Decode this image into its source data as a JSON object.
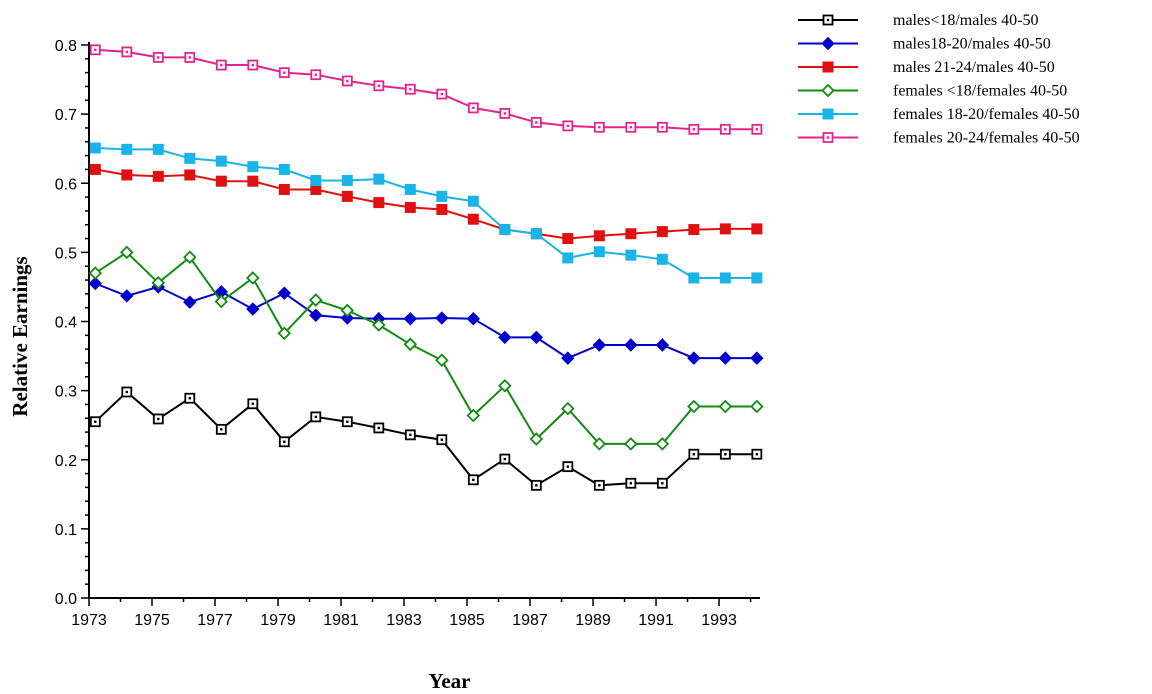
{
  "chart_data": {
    "type": "line",
    "title": "",
    "xlabel": "Year",
    "ylabel": "Relative Earnings",
    "xlim": [
      1973,
      1994.3
    ],
    "ylim": [
      0,
      0.8
    ],
    "x_ticks": [
      1973,
      1975,
      1977,
      1979,
      1981,
      1983,
      1985,
      1987,
      1989,
      1991,
      1993
    ],
    "x_tick_labels": [
      "1973",
      "1975",
      "1977",
      "1979",
      "1981",
      "1983",
      "1985",
      "1987",
      "1989",
      "1991",
      "1993"
    ],
    "y_ticks": [
      0,
      0.1,
      0.2,
      0.3,
      0.4,
      0.5,
      0.6,
      0.7,
      0.8
    ],
    "y_tick_labels": [
      "0.0",
      "0.1",
      "0.2",
      "0.3",
      "0.4",
      "0.5",
      "0.6",
      "0.7",
      "0.8"
    ],
    "grid": false,
    "legend_position": "top-right",
    "x": [
      1973.2,
      1974.2,
      1975.2,
      1976.2,
      1977.2,
      1978.2,
      1979.2,
      1980.2,
      1981.2,
      1982.2,
      1983.2,
      1984.2,
      1985.2,
      1986.2,
      1987.2,
      1988.2,
      1989.2,
      1990.2,
      1991.2,
      1992.2,
      1993.2,
      1994.2
    ],
    "series": [
      {
        "name": "males<18/males 40-50",
        "color": "#000000",
        "marker": "open-square",
        "values": [
          0.255,
          0.298,
          0.259,
          0.289,
          0.244,
          0.281,
          0.226,
          0.262,
          0.255,
          0.246,
          0.236,
          0.229,
          0.171,
          0.201,
          0.163,
          0.19,
          0.163,
          0.166,
          0.166,
          0.208,
          0.208,
          0.208
        ]
      },
      {
        "name": "males18-20/males 40-50",
        "color": "#0000cc",
        "marker": "filled-diamond",
        "values": [
          0.455,
          0.437,
          0.45,
          0.428,
          0.443,
          0.418,
          0.441,
          0.409,
          0.405,
          0.404,
          0.404,
          0.405,
          0.404,
          0.377,
          0.377,
          0.347,
          0.366,
          0.366,
          0.366,
          0.347,
          0.347,
          0.347
        ]
      },
      {
        "name": "males 21-24/males 40-50",
        "color": "#e01010",
        "marker": "filled-square",
        "values": [
          0.62,
          0.612,
          0.61,
          0.612,
          0.603,
          0.603,
          0.591,
          0.591,
          0.581,
          0.572,
          0.565,
          0.562,
          0.548,
          0.533,
          0.527,
          0.52,
          0.524,
          0.527,
          0.53,
          0.533,
          0.534,
          0.534
        ]
      },
      {
        "name": "females <18/females 40-50",
        "color": "#108c10",
        "marker": "open-diamond",
        "values": [
          0.47,
          0.5,
          0.456,
          0.493,
          0.429,
          0.463,
          0.383,
          0.431,
          0.416,
          0.395,
          0.367,
          0.344,
          0.264,
          0.307,
          0.23,
          0.274,
          0.223,
          0.223,
          0.223,
          0.277,
          0.277,
          0.277
        ]
      },
      {
        "name": "females 18-20/females 40-50",
        "color": "#19b4e8",
        "marker": "filled-square",
        "values": [
          0.651,
          0.649,
          0.649,
          0.636,
          0.632,
          0.624,
          0.62,
          0.604,
          0.604,
          0.606,
          0.591,
          0.581,
          0.574,
          0.533,
          0.527,
          0.492,
          0.501,
          0.496,
          0.49,
          0.463,
          0.463,
          0.463
        ]
      },
      {
        "name": "females 20-24/females 40-50",
        "color": "#e6228c",
        "marker": "open-square",
        "values": [
          0.793,
          0.79,
          0.782,
          0.782,
          0.771,
          0.771,
          0.76,
          0.757,
          0.748,
          0.741,
          0.736,
          0.729,
          0.709,
          0.701,
          0.688,
          0.683,
          0.681,
          0.681,
          0.681,
          0.678,
          0.678,
          0.678
        ]
      }
    ]
  }
}
